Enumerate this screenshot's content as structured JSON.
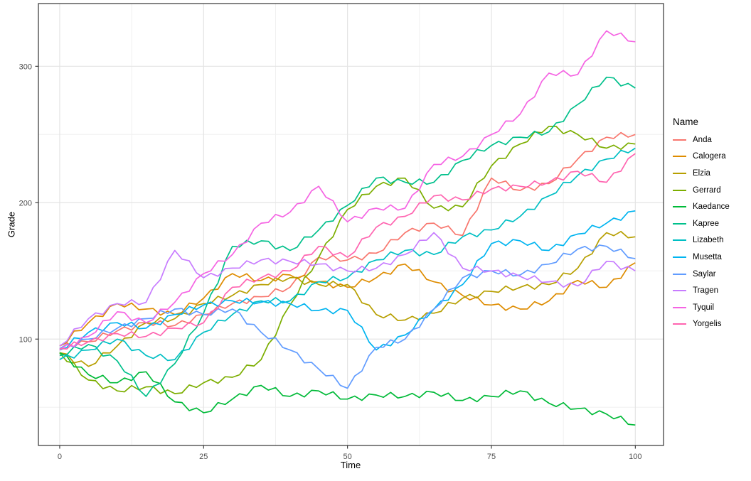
{
  "figure": {
    "xlabel": "Time",
    "ylabel": "Grade",
    "legend_title": "Name"
  },
  "chart_data": {
    "type": "line",
    "title": "",
    "xlabel": "Time",
    "ylabel": "Grade",
    "legend_position": "right",
    "grid": true,
    "xlim": [
      -3.7,
      104.9
    ],
    "ylim": [
      22,
      346
    ],
    "x_ticks": [
      0,
      25,
      50,
      75,
      100
    ],
    "y_ticks": [
      100,
      200,
      300
    ],
    "x_minor": [
      12.5,
      37.5,
      62.5,
      87.5
    ],
    "y_minor": [
      50,
      150,
      250
    ],
    "x": [
      0,
      5,
      10,
      15,
      20,
      25,
      30,
      35,
      40,
      45,
      50,
      55,
      60,
      65,
      70,
      75,
      80,
      85,
      90,
      95,
      100
    ],
    "series": [
      {
        "name": "Anda",
        "color": "#F8766D",
        "values": [
          95,
          98,
          106,
          112,
          110,
          118,
          126,
          131,
          138,
          160,
          158,
          163,
          178,
          185,
          176,
          218,
          209,
          214,
          232,
          248,
          250
        ]
      },
      {
        "name": "Calogera",
        "color": "#DE8C00",
        "values": [
          95,
          112,
          126,
          122,
          118,
          130,
          148,
          143,
          147,
          142,
          138,
          145,
          155,
          142,
          132,
          125,
          122,
          128,
          143,
          138,
          156
        ]
      },
      {
        "name": "Elzia",
        "color": "#B79F00",
        "values": [
          90,
          80,
          95,
          112,
          115,
          126,
          132,
          140,
          145,
          140,
          140,
          118,
          114,
          119,
          130,
          135,
          138,
          140,
          152,
          178,
          175
        ]
      },
      {
        "name": "Gerrard",
        "color": "#7CAE00",
        "values": [
          90,
          70,
          62,
          65,
          60,
          68,
          72,
          85,
          125,
          160,
          195,
          212,
          218,
          196,
          197,
          227,
          243,
          256,
          250,
          240,
          243
        ]
      },
      {
        "name": "Kaedance",
        "color": "#00BA38",
        "values": [
          90,
          74,
          68,
          76,
          54,
          46,
          56,
          66,
          58,
          62,
          56,
          59,
          58,
          61,
          55,
          58,
          62,
          53,
          49,
          45,
          37
        ]
      },
      {
        "name": "Kapree",
        "color": "#00C08B",
        "values": [
          88,
          96,
          84,
          58,
          82,
          119,
          168,
          172,
          165,
          180,
          198,
          218,
          215,
          215,
          231,
          242,
          248,
          252,
          272,
          292,
          284
        ]
      },
      {
        "name": "Lizabeth",
        "color": "#00BFC4",
        "values": [
          85,
          92,
          100,
          88,
          85,
          105,
          118,
          128,
          128,
          142,
          145,
          158,
          165,
          162,
          175,
          180,
          190,
          205,
          220,
          232,
          240
        ]
      },
      {
        "name": "Musetta",
        "color": "#00B4F0",
        "values": [
          92,
          105,
          112,
          108,
          118,
          125,
          128,
          127,
          126,
          121,
          121,
          92,
          103,
          122,
          140,
          170,
          172,
          165,
          177,
          185,
          194
        ]
      },
      {
        "name": "Saylar",
        "color": "#619CFF",
        "values": [
          93,
          100,
          108,
          115,
          122,
          118,
          122,
          105,
          92,
          78,
          64,
          94,
          100,
          122,
          145,
          150,
          147,
          155,
          166,
          168,
          159
        ]
      },
      {
        "name": "Tragen",
        "color": "#C77CFF",
        "values": [
          95,
          115,
          126,
          127,
          165,
          145,
          152,
          158,
          157,
          155,
          150,
          152,
          162,
          178,
          152,
          150,
          146,
          142,
          139,
          157,
          150
        ]
      },
      {
        "name": "Tyquil",
        "color": "#F564E3",
        "values": [
          92,
          102,
          120,
          112,
          127,
          148,
          162,
          185,
          193,
          212,
          186,
          196,
          196,
          228,
          234,
          250,
          265,
          295,
          294,
          326,
          318
        ]
      },
      {
        "name": "Yorgelis",
        "color": "#FF64B0",
        "values": [
          93,
          98,
          104,
          102,
          108,
          112,
          138,
          145,
          150,
          168,
          160,
          182,
          190,
          205,
          202,
          210,
          212,
          215,
          223,
          215,
          236
        ]
      }
    ]
  }
}
